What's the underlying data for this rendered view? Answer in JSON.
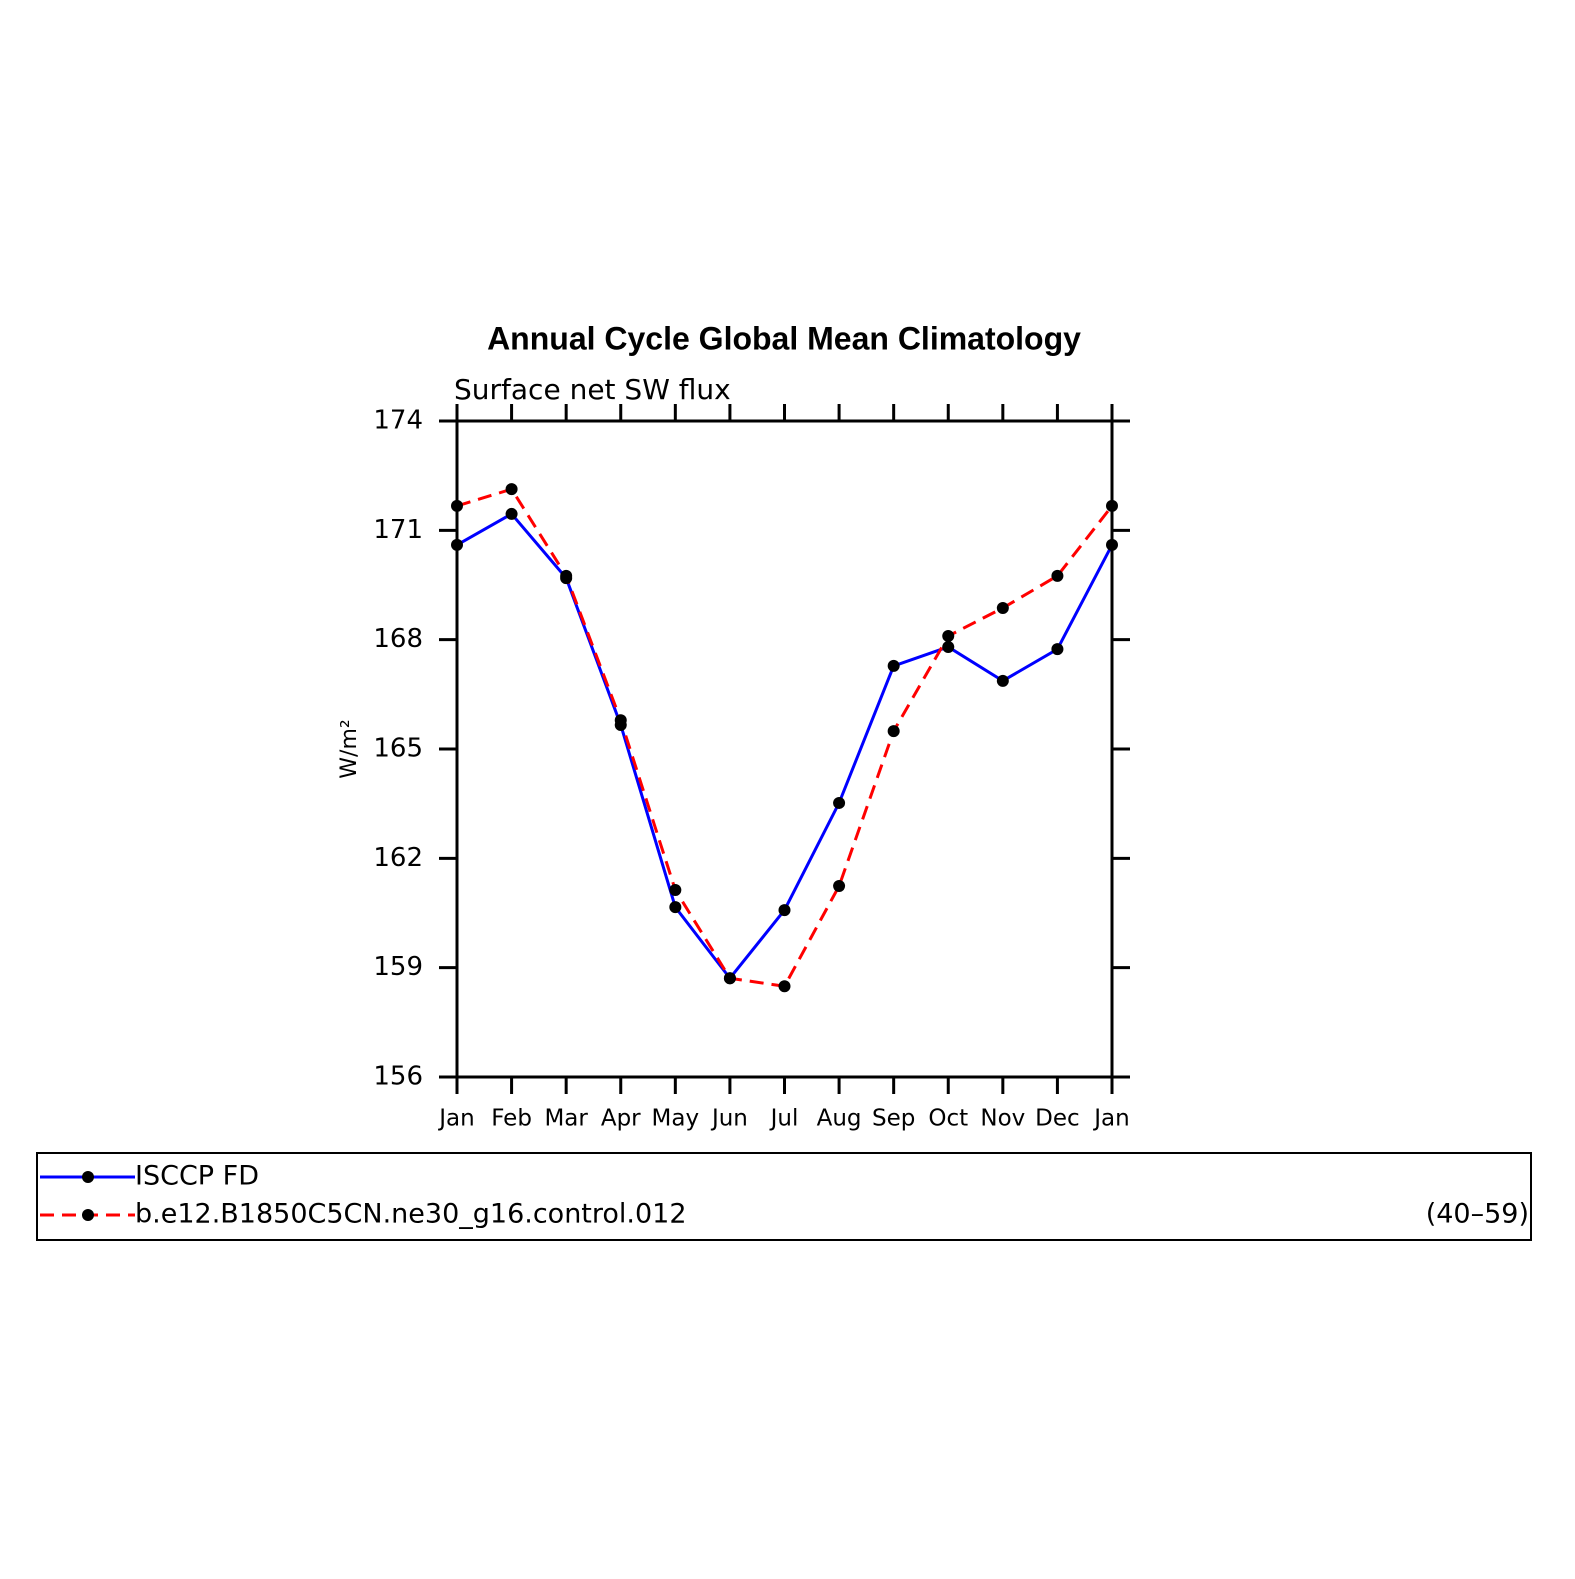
{
  "chart_data": {
    "type": "line",
    "title": "Annual Cycle Global Mean Climatology",
    "subtitle": "Surface net SW flux",
    "y_label": "W/m²",
    "categories": [
      "Jan",
      "Feb",
      "Mar",
      "Apr",
      "May",
      "Jun",
      "Jul",
      "Aug",
      "Sep",
      "Oct",
      "Nov",
      "Dec",
      "Jan"
    ],
    "series": [
      {
        "name": "ISCCP FD",
        "color": "#0000ff",
        "linestyle": "solid",
        "values": [
          170.6,
          171.45,
          169.69,
          165.66,
          160.66,
          158.71,
          160.58,
          163.52,
          167.28,
          167.8,
          166.87,
          167.74,
          170.6
        ]
      },
      {
        "name": "b.e12.B1850C5CN.ne30_g16.control.012",
        "color": "#ff0000",
        "linestyle": "dashed",
        "values": [
          171.67,
          172.13,
          169.75,
          165.79,
          161.13,
          158.71,
          158.49,
          161.24,
          165.49,
          168.1,
          168.87,
          169.75,
          171.67
        ]
      }
    ],
    "legend_annotation": "(40–59)",
    "ylim": [
      156,
      174
    ],
    "yticks": [
      156,
      159,
      162,
      165,
      168,
      171,
      174
    ],
    "marker_color": "#000000"
  }
}
